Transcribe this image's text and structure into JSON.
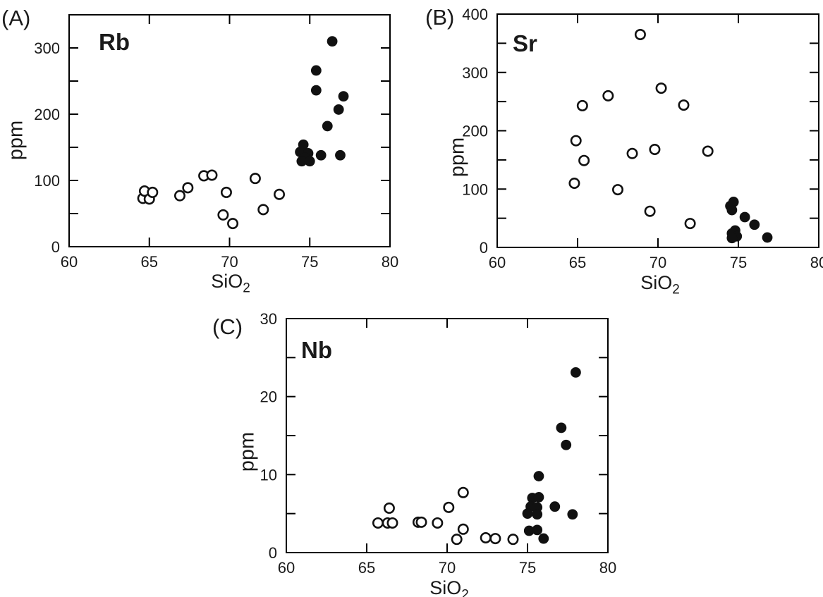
{
  "chart_data": [
    {
      "type": "scatter",
      "panel_label": "(A)",
      "title": "Rb",
      "ylabel": "ppm",
      "xlabel_main": "SiO",
      "xlabel_sub": "2",
      "xlim": [
        60,
        80
      ],
      "ylim": [
        0,
        350
      ],
      "x_tick_marks": [
        65,
        70,
        75
      ],
      "x_tick_labels": [
        60,
        65,
        70,
        75,
        80
      ],
      "y_tick_marks": [
        50,
        100,
        150,
        200,
        250,
        300
      ],
      "y_tick_labels": [
        0,
        100,
        200,
        300
      ],
      "marker_color": "#111111",
      "series": [
        {
          "name": "open-circles",
          "marker": "open",
          "points": [
            [
              64.6,
              73
            ],
            [
              64.7,
              84
            ],
            [
              65.0,
              72
            ],
            [
              65.2,
              82
            ],
            [
              66.9,
              77
            ],
            [
              67.4,
              89
            ],
            [
              68.4,
              107
            ],
            [
              68.9,
              108
            ],
            [
              69.6,
              48
            ],
            [
              69.8,
              82
            ],
            [
              70.2,
              35
            ],
            [
              71.6,
              103
            ],
            [
              72.1,
              56
            ],
            [
              73.1,
              79
            ]
          ]
        },
        {
          "name": "filled-circles",
          "marker": "filled",
          "points": [
            [
              76.4,
              310
            ],
            [
              75.4,
              266
            ],
            [
              75.4,
              236
            ],
            [
              77.1,
              227
            ],
            [
              76.8,
              207
            ],
            [
              76.1,
              182
            ],
            [
              74.6,
              154
            ],
            [
              74.4,
              143
            ],
            [
              74.9,
              141
            ],
            [
              74.7,
              134
            ],
            [
              74.5,
              129
            ],
            [
              75.0,
              129
            ],
            [
              75.7,
              138
            ],
            [
              76.9,
              138
            ]
          ]
        }
      ]
    },
    {
      "type": "scatter",
      "panel_label": "(B)",
      "title": "Sr",
      "ylabel": "ppm",
      "xlabel_main": "SiO",
      "xlabel_sub": "2",
      "xlim": [
        60,
        80
      ],
      "ylim": [
        0,
        400
      ],
      "x_tick_marks": [
        65,
        70,
        75
      ],
      "x_tick_labels": [
        60,
        65,
        70,
        75,
        80
      ],
      "y_tick_marks": [
        50,
        100,
        150,
        200,
        250,
        300,
        350
      ],
      "y_tick_labels": [
        0,
        100,
        200,
        300,
        400
      ],
      "marker_color": "#111111",
      "series": [
        {
          "name": "open-circles",
          "marker": "open",
          "points": [
            [
              68.9,
              365
            ],
            [
              70.2,
              273
            ],
            [
              66.9,
              260
            ],
            [
              65.3,
              243
            ],
            [
              71.6,
              244
            ],
            [
              64.9,
              183
            ],
            [
              69.8,
              168
            ],
            [
              68.4,
              161
            ],
            [
              73.1,
              165
            ],
            [
              65.4,
              149
            ],
            [
              64.8,
              110
            ],
            [
              67.5,
              99
            ],
            [
              69.5,
              62
            ],
            [
              72.0,
              41
            ]
          ]
        },
        {
          "name": "filled-circles",
          "marker": "filled",
          "points": [
            [
              74.5,
              71
            ],
            [
              74.7,
              78
            ],
            [
              74.6,
              64
            ],
            [
              75.4,
              52
            ],
            [
              76.0,
              39
            ],
            [
              74.8,
              29
            ],
            [
              74.6,
              24
            ],
            [
              74.9,
              19
            ],
            [
              74.6,
              16
            ],
            [
              76.8,
              17
            ]
          ]
        }
      ]
    },
    {
      "type": "scatter",
      "panel_label": "(C)",
      "title": "Nb",
      "ylabel": "ppm",
      "xlabel_main": "SiO",
      "xlabel_sub": "2",
      "xlim": [
        60,
        80
      ],
      "ylim": [
        0,
        30
      ],
      "x_tick_marks": [
        65,
        70,
        75
      ],
      "x_tick_labels": [
        60,
        65,
        70,
        75,
        80
      ],
      "y_tick_marks": [
        5,
        10,
        15,
        20,
        25
      ],
      "y_tick_labels": [
        0,
        10,
        20,
        30
      ],
      "marker_color": "#111111",
      "series": [
        {
          "name": "open-circles",
          "marker": "open",
          "points": [
            [
              65.7,
              3.8
            ],
            [
              66.4,
              5.7
            ],
            [
              66.3,
              3.8
            ],
            [
              66.6,
              3.8
            ],
            [
              68.2,
              3.9
            ],
            [
              68.4,
              3.9
            ],
            [
              69.4,
              3.8
            ],
            [
              70.1,
              5.8
            ],
            [
              71.0,
              7.7
            ],
            [
              71.0,
              3.0
            ],
            [
              70.6,
              1.7
            ],
            [
              72.4,
              1.9
            ],
            [
              73.0,
              1.8
            ],
            [
              74.1,
              1.7
            ]
          ]
        },
        {
          "name": "filled-circles",
          "marker": "filled",
          "points": [
            [
              78.0,
              23.1
            ],
            [
              77.1,
              16.0
            ],
            [
              77.4,
              13.8
            ],
            [
              75.7,
              9.8
            ],
            [
              75.3,
              7.0
            ],
            [
              75.7,
              7.1
            ],
            [
              75.2,
              5.9
            ],
            [
              75.6,
              5.8
            ],
            [
              75.0,
              5.0
            ],
            [
              75.6,
              4.9
            ],
            [
              76.7,
              5.9
            ],
            [
              77.8,
              4.9
            ],
            [
              75.1,
              2.8
            ],
            [
              75.6,
              2.9
            ],
            [
              76.0,
              1.8
            ]
          ]
        }
      ]
    }
  ]
}
